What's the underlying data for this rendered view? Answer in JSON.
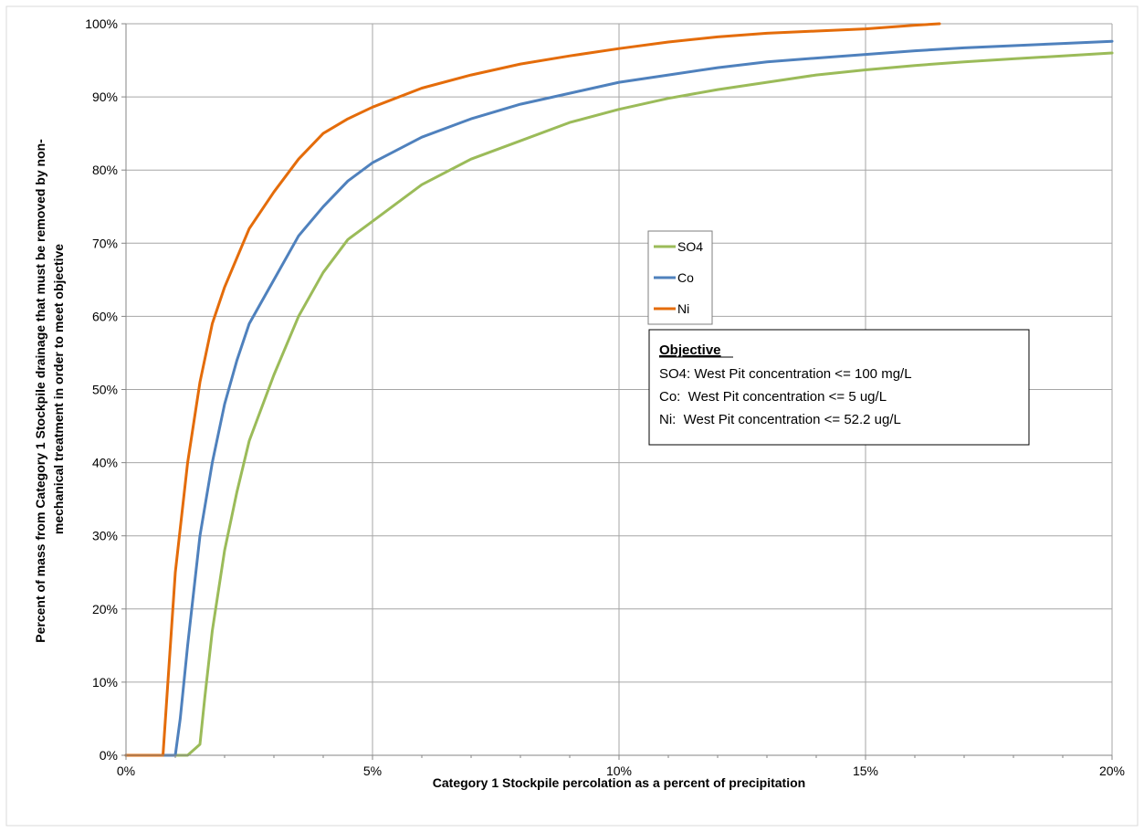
{
  "chart_data": {
    "type": "line",
    "title": "",
    "xlabel": "Category 1 Stockpile percolation as a percent of precipitation",
    "ylabel": "Percent of mass from Category 1 Stockpile drainage that must be removed by non-mechanical treatment in order to meet objective",
    "ylabel_lines": [
      "Percent of mass from Category 1 Stockpile drainage that must be removed by non-",
      "mechanical treatment in order to meet objective"
    ],
    "xlim": [
      0,
      20
    ],
    "ylim": [
      0,
      100
    ],
    "x_ticks": [
      "0%",
      "5%",
      "10%",
      "15%",
      "20%"
    ],
    "y_ticks": [
      "0%",
      "10%",
      "20%",
      "30%",
      "40%",
      "50%",
      "60%",
      "70%",
      "80%",
      "90%",
      "100%"
    ],
    "grid": true,
    "legend_position": "center",
    "series": [
      {
        "name": "SO4",
        "color": "#9bbb59",
        "points": [
          [
            0,
            0
          ],
          [
            1.25,
            0
          ],
          [
            1.5,
            1.5
          ],
          [
            1.6,
            8
          ],
          [
            1.75,
            17
          ],
          [
            2.0,
            28
          ],
          [
            2.25,
            36
          ],
          [
            2.5,
            43
          ],
          [
            3.0,
            52
          ],
          [
            3.5,
            60
          ],
          [
            4.0,
            66
          ],
          [
            4.5,
            70.5
          ],
          [
            5.0,
            73
          ],
          [
            6.0,
            78
          ],
          [
            7.0,
            81.5
          ],
          [
            8.0,
            84
          ],
          [
            9.0,
            86.5
          ],
          [
            10.0,
            88.3
          ],
          [
            11.0,
            89.8
          ],
          [
            12.0,
            91
          ],
          [
            13.0,
            92
          ],
          [
            14.0,
            93
          ],
          [
            15.0,
            93.7
          ],
          [
            16.0,
            94.3
          ],
          [
            17.0,
            94.8
          ],
          [
            18.0,
            95.2
          ],
          [
            19.0,
            95.6
          ],
          [
            20.0,
            96
          ]
        ]
      },
      {
        "name": "Co",
        "color": "#4f81bd",
        "points": [
          [
            0,
            0
          ],
          [
            1.0,
            0
          ],
          [
            1.1,
            5
          ],
          [
            1.25,
            15
          ],
          [
            1.5,
            30
          ],
          [
            1.75,
            40
          ],
          [
            2.0,
            48
          ],
          [
            2.25,
            54
          ],
          [
            2.5,
            59
          ],
          [
            3.0,
            65
          ],
          [
            3.5,
            71
          ],
          [
            4.0,
            75
          ],
          [
            4.5,
            78.5
          ],
          [
            5.0,
            81
          ],
          [
            6.0,
            84.5
          ],
          [
            7.0,
            87
          ],
          [
            8.0,
            89
          ],
          [
            9.0,
            90.5
          ],
          [
            10.0,
            92
          ],
          [
            11.0,
            93
          ],
          [
            12.0,
            94
          ],
          [
            13.0,
            94.8
          ],
          [
            14.0,
            95.3
          ],
          [
            15.0,
            95.8
          ],
          [
            16.0,
            96.3
          ],
          [
            17.0,
            96.7
          ],
          [
            18.0,
            97
          ],
          [
            19.0,
            97.3
          ],
          [
            20.0,
            97.6
          ]
        ]
      },
      {
        "name": "Ni",
        "color": "#e46c0a",
        "points": [
          [
            0,
            0
          ],
          [
            0.75,
            0
          ],
          [
            0.85,
            10
          ],
          [
            1.0,
            25
          ],
          [
            1.25,
            40
          ],
          [
            1.5,
            51
          ],
          [
            1.75,
            59
          ],
          [
            2.0,
            64
          ],
          [
            2.5,
            72
          ],
          [
            3.0,
            77
          ],
          [
            3.5,
            81.5
          ],
          [
            4.0,
            85
          ],
          [
            4.5,
            87
          ],
          [
            5.0,
            88.6
          ],
          [
            6.0,
            91.2
          ],
          [
            7.0,
            93
          ],
          [
            8.0,
            94.5
          ],
          [
            9.0,
            95.6
          ],
          [
            10.0,
            96.6
          ],
          [
            11.0,
            97.5
          ],
          [
            12.0,
            98.2
          ],
          [
            13.0,
            98.7
          ],
          [
            14.0,
            99
          ],
          [
            15.0,
            99.3
          ],
          [
            16.0,
            99.8
          ],
          [
            16.5,
            100
          ]
        ]
      }
    ],
    "annotation": {
      "title": "Objective",
      "lines": [
        "SO4: West Pit concentration <= 100 mg/L",
        "Co:  West Pit concentration <= 5 ug/L",
        "Ni:  West Pit concentration <= 52.2 ug/L"
      ]
    }
  }
}
